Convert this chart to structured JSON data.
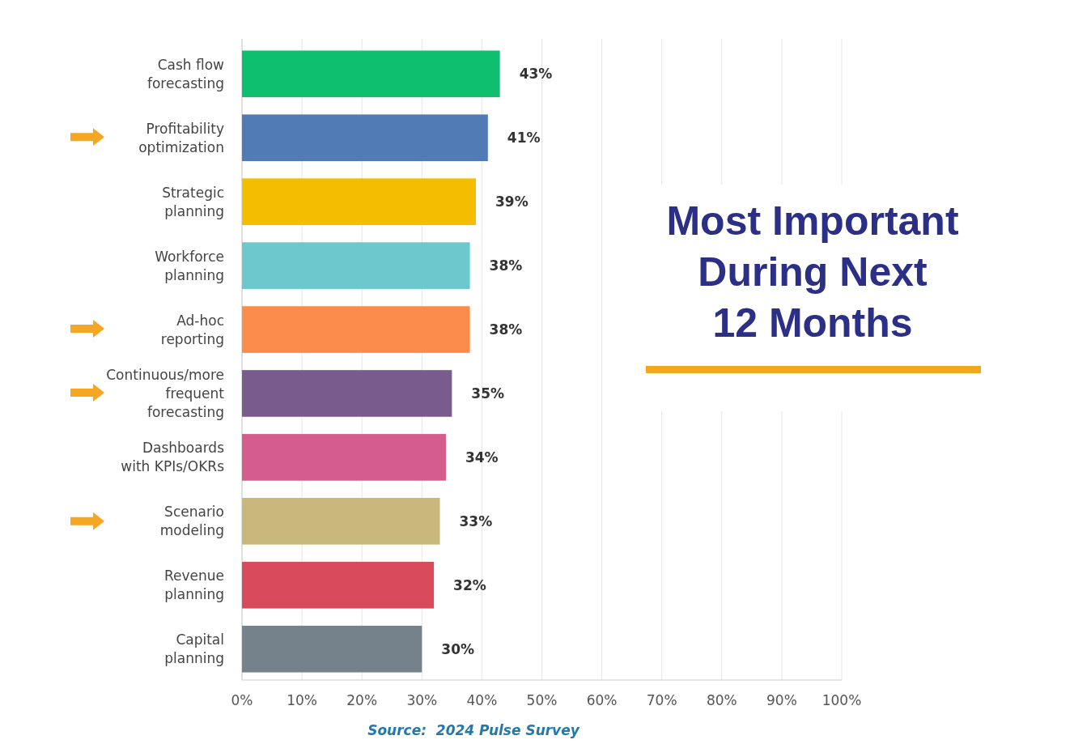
{
  "chart_data": {
    "type": "bar",
    "orientation": "horizontal",
    "title": "Most Important During Next 12 Months",
    "categories": [
      "Cash flow forecasting",
      "Profitability optimization",
      "Strategic planning",
      "Workforce planning",
      "Ad-hoc reporting",
      "Continuous/more frequent forecasting",
      "Dashboards with KPIs/OKRs",
      "Scenario modeling",
      "Revenue planning",
      "Capital planning"
    ],
    "values": [
      43,
      41,
      39,
      38,
      38,
      35,
      34,
      33,
      32,
      30
    ],
    "colors": [
      "#0dbf6f",
      "#507bb5",
      "#f4bd00",
      "#6cc8cc",
      "#fc8c4c",
      "#7a5b8e",
      "#d45d8d",
      "#c8b87b",
      "#d94a5c",
      "#76828b"
    ],
    "value_labels": [
      "43%",
      "41%",
      "39%",
      "38%",
      "38%",
      "35%",
      "34%",
      "33%",
      "32%",
      "30%"
    ],
    "xlim": [
      0,
      100
    ],
    "xticks": [
      {
        "value": 0,
        "label": "0%"
      },
      {
        "value": 10,
        "label": "10%"
      },
      {
        "value": 20,
        "label": "20%"
      },
      {
        "value": 30,
        "label": "30%"
      },
      {
        "value": 40,
        "label": "40%"
      },
      {
        "value": 50,
        "label": "50%"
      },
      {
        "value": 60,
        "label": "60%"
      },
      {
        "value": 70,
        "label": "70%"
      },
      {
        "value": 80,
        "label": "80%"
      },
      {
        "value": 90,
        "label": "90%"
      },
      {
        "value": 100,
        "label": "100%"
      }
    ],
    "grid": "x",
    "annotations": [
      "Source:  2024 Pulse Survey"
    ]
  }
}
